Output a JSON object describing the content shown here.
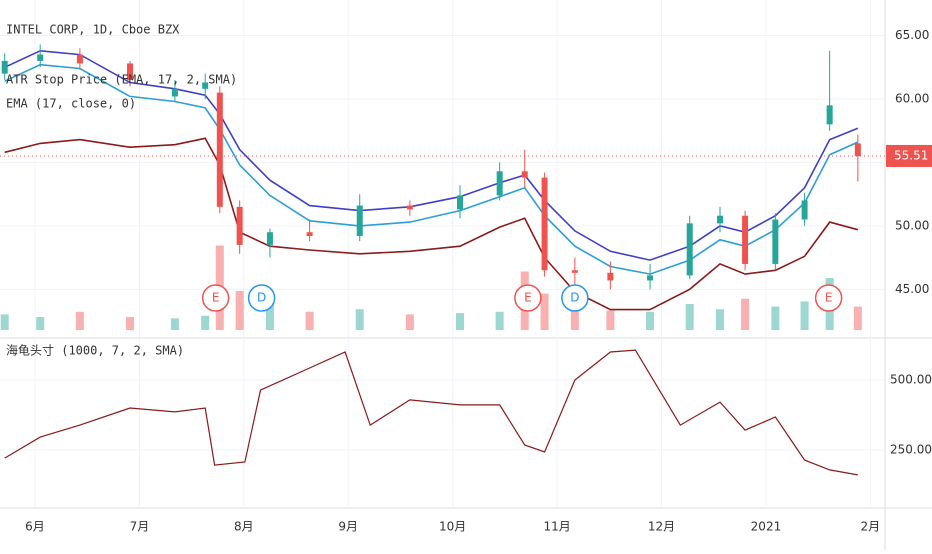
{
  "chart_data": {
    "type": "candlestick",
    "title": "INTEL CORP, 1D, Cboe BZX",
    "xlim": [
      5.665,
      14.14
    ],
    "xticks": [
      {
        "value": 6,
        "label": "6月"
      },
      {
        "value": 7,
        "label": "7月"
      },
      {
        "value": 8,
        "label": "8月"
      },
      {
        "value": 9,
        "label": "9月"
      },
      {
        "value": 10,
        "label": "10月"
      },
      {
        "value": 11,
        "label": "11月"
      },
      {
        "value": 12,
        "label": "12月"
      },
      {
        "value": 13,
        "label": "2021"
      },
      {
        "value": 14,
        "label": "2月"
      }
    ],
    "ylim": [
      41.4,
      67.8
    ],
    "yticks": [
      {
        "value": 45,
        "label": "45.00"
      },
      {
        "value": 50,
        "label": "50.00"
      },
      {
        "value": 55,
        "label": "55.00"
      },
      {
        "value": 60,
        "label": "60.00"
      },
      {
        "value": 65,
        "label": "65.00"
      }
    ],
    "grid": true,
    "last_price": {
      "value": 55.51,
      "label": "55.51",
      "color": "#ef5350"
    },
    "x": [
      5.71,
      6.05,
      6.43,
      6.91,
      7.34,
      7.63,
      7.77,
      7.96,
      8.25,
      8.63,
      9.11,
      9.59,
      10.07,
      10.45,
      10.69,
      10.88,
      11.17,
      11.51,
      11.89,
      12.27,
      12.56,
      12.8,
      13.09,
      13.37,
      13.61,
      13.88
    ],
    "open": [
      62.0,
      63.0,
      63.5,
      62.8,
      60.2,
      60.8,
      60.5,
      51.5,
      48.5,
      49.5,
      49.2,
      51.6,
      51.3,
      52.4,
      54.3,
      53.8,
      46.5,
      46.3,
      45.7,
      46.1,
      50.2,
      50.8,
      47.0,
      50.5,
      58.0,
      56.5
    ],
    "high": [
      63.6,
      64.3,
      64.0,
      63.0,
      61.5,
      62.0,
      61.0,
      52.0,
      49.8,
      50.5,
      52.5,
      52.0,
      53.2,
      55.0,
      56.0,
      54.2,
      47.5,
      47.2,
      47.0,
      50.8,
      51.5,
      51.2,
      51.0,
      52.6,
      63.8,
      57.2
    ],
    "low": [
      61.5,
      62.5,
      62.3,
      61.0,
      59.8,
      60.0,
      51.0,
      47.8,
      47.5,
      48.8,
      48.8,
      50.8,
      50.6,
      52.0,
      53.0,
      46.0,
      44.8,
      45.0,
      45.0,
      45.8,
      49.5,
      46.5,
      46.5,
      50.0,
      57.5,
      53.5
    ],
    "close": [
      63.0,
      63.5,
      62.8,
      61.5,
      60.8,
      61.3,
      51.5,
      48.5,
      49.5,
      49.2,
      51.6,
      51.3,
      52.4,
      54.3,
      53.8,
      46.5,
      46.3,
      45.7,
      46.1,
      50.2,
      50.8,
      47.0,
      50.5,
      52.0,
      59.5,
      55.5
    ],
    "up_color": "#26a69a",
    "down_color": "#ef5350",
    "volume": [
      12,
      10,
      14,
      10,
      9,
      11,
      65,
      30,
      20,
      14,
      16,
      12,
      13,
      14,
      45,
      28,
      22,
      15,
      14,
      20,
      16,
      24,
      18,
      22,
      40,
      18
    ],
    "volume_ylim": [
      0,
      100
    ],
    "series": [
      {
        "name": "ATR Stop Price (EMA, 17, 2, SMA)",
        "color": "#3f3fc8",
        "values": [
          62.5,
          63.8,
          63.5,
          61.3,
          60.8,
          60.3,
          58.8,
          56.0,
          53.6,
          51.6,
          51.2,
          51.5,
          52.3,
          53.4,
          54.0,
          52.0,
          49.6,
          48.0,
          47.3,
          48.4,
          50.0,
          49.5,
          50.8,
          53.0,
          56.8,
          57.7
        ]
      },
      {
        "name": "EMA (17, close, 0)",
        "color": "#2a9fd8",
        "values": [
          61.4,
          62.7,
          62.4,
          60.2,
          59.8,
          59.3,
          57.6,
          54.8,
          52.4,
          50.4,
          50.0,
          50.3,
          51.2,
          52.3,
          53.0,
          50.8,
          48.4,
          46.8,
          46.2,
          47.3,
          48.9,
          48.4,
          49.7,
          51.8,
          55.6,
          56.6
        ]
      },
      {
        "color": "#8b1a1a",
        "values": [
          55.8,
          56.5,
          56.8,
          56.2,
          56.4,
          56.9,
          54.8,
          49.5,
          48.4,
          48.1,
          47.8,
          48.0,
          48.4,
          49.9,
          50.6,
          47.5,
          44.8,
          43.4,
          43.4,
          45.0,
          47.0,
          46.2,
          46.5,
          47.6,
          50.3,
          49.7
        ]
      }
    ],
    "events": [
      {
        "label": "E",
        "x": 7.73,
        "color": "#ef5350"
      },
      {
        "label": "D",
        "x": 8.17,
        "color": "#2196f3"
      },
      {
        "label": "E",
        "x": 10.72,
        "color": "#ef5350"
      },
      {
        "label": "D",
        "x": 11.17,
        "color": "#2196f3"
      },
      {
        "label": "E",
        "x": 13.6,
        "color": "#ef5350"
      }
    ],
    "indicator": {
      "name": "海龟头寸 (1000, 7, 2, SMA)",
      "color": "#8b1a1a",
      "ylim": [
        53.6,
        642.9
      ],
      "yticks": [
        {
          "value": 250,
          "label": "250.00"
        },
        {
          "value": 500,
          "label": "500.00"
        }
      ],
      "x": [
        5.71,
        6.05,
        6.43,
        6.91,
        7.34,
        7.63,
        7.72,
        8.01,
        8.16,
        8.63,
        8.97,
        9.21,
        9.59,
        10.07,
        10.45,
        10.69,
        10.88,
        11.17,
        11.51,
        11.75,
        12.18,
        12.56,
        12.8,
        13.09,
        13.37,
        13.61,
        13.88
      ],
      "values": [
        221,
        296,
        339,
        400,
        386,
        400,
        196,
        207,
        464,
        543,
        600,
        339,
        429,
        411,
        411,
        268,
        243,
        500,
        600,
        607,
        339,
        421,
        321,
        368,
        214,
        179,
        161
      ]
    }
  }
}
